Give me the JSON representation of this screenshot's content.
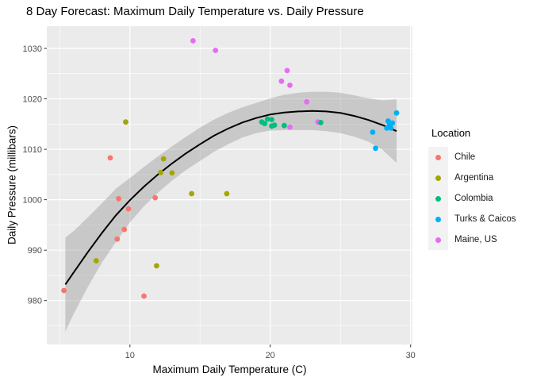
{
  "chart_data": {
    "type": "scatter",
    "title": "8 Day Forecast: Maximum Daily Temperature vs. Daily Pressure",
    "xlabel": "Maximum Daily Temperature (C)",
    "ylabel": "Daily Pressure (millibars)",
    "xlim": [
      4.08,
      30.13
    ],
    "ylim": [
      971.3,
      1034.4
    ],
    "x_ticks": [
      10,
      20,
      30
    ],
    "x_minor_ticks": [
      5,
      15,
      25
    ],
    "y_ticks": [
      980,
      990,
      1000,
      1010,
      1020,
      1030
    ],
    "y_minor_ticks": [
      975,
      985,
      995,
      1005,
      1015,
      1025
    ],
    "grid": "on",
    "legend": {
      "title": "Location",
      "position": "right"
    },
    "colors": {
      "panel_bg": "#EBEBEB",
      "grid": "#FFFFFF",
      "tick_mark": "#333333",
      "tick_label": "#4D4D4D",
      "smooth_line": "#000000",
      "band": "#999999",
      "legend_key_bg": "#F2F2F2"
    },
    "series": [
      {
        "name": "Chile",
        "color": "#F8766D",
        "points": [
          [
            5.3,
            982
          ],
          [
            8.6,
            1008.3
          ],
          [
            9.1,
            992.2
          ],
          [
            9.2,
            1000.2
          ],
          [
            9.6,
            994.1
          ],
          [
            9.9,
            998.2
          ],
          [
            11.0,
            980.9
          ],
          [
            11.8,
            1000.4
          ]
        ]
      },
      {
        "name": "Argentina",
        "color": "#A3A500",
        "points": [
          [
            7.6,
            987.9
          ],
          [
            9.7,
            1015.4
          ],
          [
            11.9,
            986.9
          ],
          [
            12.2,
            1005.4
          ],
          [
            12.4,
            1008.1
          ],
          [
            13.0,
            1005.3
          ],
          [
            14.4,
            1001.2
          ],
          [
            16.9,
            1001.2
          ]
        ]
      },
      {
        "name": "Colombia",
        "color": "#00BF7D",
        "points": [
          [
            19.4,
            1015.4
          ],
          [
            19.6,
            1015.1
          ],
          [
            19.8,
            1016.0
          ],
          [
            20.1,
            1015.9
          ],
          [
            20.1,
            1014.6
          ],
          [
            20.3,
            1014.8
          ],
          [
            21.0,
            1014.7
          ],
          [
            23.6,
            1015.3
          ]
        ]
      },
      {
        "name": "Turks & Caicos",
        "color": "#00B0F6",
        "points": [
          [
            27.3,
            1013.4
          ],
          [
            27.5,
            1010.2
          ],
          [
            28.3,
            1014.2
          ],
          [
            28.4,
            1015.6
          ],
          [
            28.5,
            1014.9
          ],
          [
            28.6,
            1014.2
          ],
          [
            28.7,
            1015.2
          ],
          [
            29.0,
            1017.2
          ]
        ]
      },
      {
        "name": "Maine, US",
        "color": "#E76BF3",
        "points": [
          [
            14.5,
            1031.5
          ],
          [
            16.1,
            1029.6
          ],
          [
            20.8,
            1023.5
          ],
          [
            21.2,
            1025.6
          ],
          [
            21.4,
            1022.7
          ],
          [
            21.4,
            1014.4
          ],
          [
            22.6,
            1019.4
          ],
          [
            23.4,
            1015.4
          ]
        ]
      }
    ],
    "draw_order": [
      0,
      1,
      4,
      3,
      2
    ],
    "smooth": {
      "color": "#000000",
      "band_color": "#999999",
      "x": [
        5.4,
        6,
        7,
        8,
        9,
        10,
        11,
        12,
        13,
        14,
        15,
        16,
        17,
        18,
        19,
        20,
        21,
        22,
        23,
        24,
        25,
        26,
        27,
        28,
        29
      ],
      "y": [
        983.2,
        985.6,
        989.6,
        993.4,
        996.9,
        999.9,
        1002.6,
        1005.0,
        1007.2,
        1009.2,
        1011.0,
        1012.7,
        1014.1,
        1015.3,
        1016.2,
        1016.9,
        1017.3,
        1017.5,
        1017.6,
        1017.5,
        1017.2,
        1016.6,
        1015.8,
        1014.8,
        1013.6
      ],
      "upper": [
        992.5,
        993.8,
        996.5,
        999.3,
        1002.2,
        1004.3,
        1006.5,
        1008.6,
        1010.6,
        1012.5,
        1014.3,
        1015.9,
        1017.2,
        1018.3,
        1019.2,
        1020.1,
        1020.8,
        1021.2,
        1021.4,
        1021.4,
        1021.2,
        1020.7,
        1020.1,
        1019.7,
        1019.9
      ],
      "lower": [
        973.9,
        977.4,
        982.7,
        987.5,
        991.6,
        995.5,
        998.7,
        1001.4,
        1003.8,
        1005.9,
        1007.7,
        1009.5,
        1011.0,
        1012.3,
        1013.2,
        1013.7,
        1013.8,
        1013.8,
        1013.8,
        1013.6,
        1013.2,
        1012.5,
        1011.5,
        1009.9,
        1007.3
      ]
    }
  }
}
